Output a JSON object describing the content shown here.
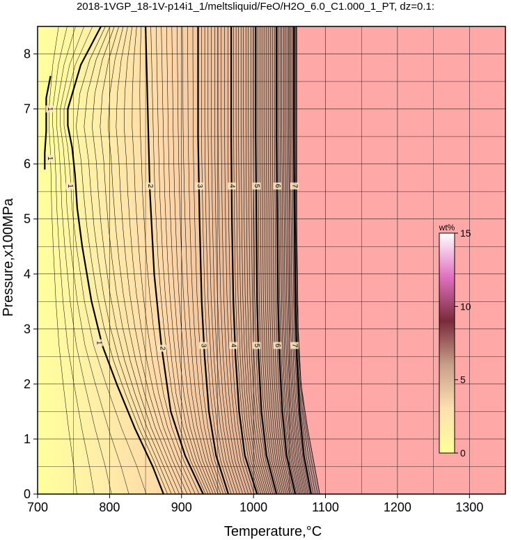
{
  "chart_data": {
    "type": "heatmap",
    "title": "2018-1VGP_18-1V-p14i1_1/meltsliquid/FeO/H2O_6.0_C1.000_1_PT, dz=0.1:",
    "xlabel": "Temperature,°C",
    "ylabel": "Pressure,x100MPa",
    "xlim": [
      700,
      1350
    ],
    "ylim": [
      0,
      8.5
    ],
    "x_ticks": [
      "700",
      "800",
      "900",
      "1000",
      "1100",
      "1200",
      "1300"
    ],
    "y_ticks": [
      "0",
      "1",
      "2",
      "3",
      "4",
      "5",
      "6",
      "7",
      "8"
    ],
    "grid": true,
    "colorbar": {
      "unit": "wt%",
      "range": [
        0,
        15
      ],
      "ticks": [
        "0",
        "5",
        "10",
        "15"
      ],
      "colors": [
        "#ffff99",
        "#ffe0b0",
        "#c8a08a",
        "#7a2a3a",
        "#e070c0",
        "#ffffff"
      ]
    },
    "liquid_free_region_color": "#ffa8a8",
    "solidus_contour": [
      {
        "t": 1060,
        "p": 8.5
      },
      {
        "t": 1060,
        "p": 5.0
      },
      {
        "t": 1062,
        "p": 3.0
      },
      {
        "t": 1066,
        "p": 2.0
      },
      {
        "t": 1075,
        "p": 1.2
      },
      {
        "t": 1085,
        "p": 0.5
      },
      {
        "t": 1092,
        "p": 0.0
      }
    ],
    "contours": [
      {
        "label": "1",
        "label_positions": [
          {
            "t": 745,
            "p": 5.6
          },
          {
            "t": 785,
            "p": 2.75
          }
        ],
        "points": [
          {
            "t": 788,
            "p": 8.5
          },
          {
            "t": 760,
            "p": 7.8
          },
          {
            "t": 742,
            "p": 7.0
          },
          {
            "t": 742,
            "p": 6.7
          },
          {
            "t": 748,
            "p": 6.3
          },
          {
            "t": 752,
            "p": 5.8
          },
          {
            "t": 755,
            "p": 5.2
          },
          {
            "t": 762,
            "p": 4.5
          },
          {
            "t": 775,
            "p": 3.5
          },
          {
            "t": 790,
            "p": 2.7
          },
          {
            "t": 810,
            "p": 2.0
          },
          {
            "t": 835,
            "p": 1.2
          },
          {
            "t": 860,
            "p": 0.5
          },
          {
            "t": 875,
            "p": 0.0
          }
        ]
      },
      {
        "label": "1",
        "label_positions": [
          {
            "t": 717,
            "p": 7.0
          },
          {
            "t": 717,
            "p": 6.1
          }
        ],
        "points": [
          {
            "t": 718,
            "p": 7.6
          },
          {
            "t": 712,
            "p": 7.2
          },
          {
            "t": 712,
            "p": 6.6
          },
          {
            "t": 710,
            "p": 6.2
          },
          {
            "t": 710,
            "p": 5.9
          }
        ]
      },
      {
        "label": "2",
        "label_positions": [
          {
            "t": 856,
            "p": 5.6
          },
          {
            "t": 873,
            "p": 2.65
          }
        ],
        "points": [
          {
            "t": 850,
            "p": 8.5
          },
          {
            "t": 853,
            "p": 7.0
          },
          {
            "t": 856,
            "p": 5.5
          },
          {
            "t": 862,
            "p": 4.0
          },
          {
            "t": 872,
            "p": 2.7
          },
          {
            "t": 885,
            "p": 1.5
          },
          {
            "t": 905,
            "p": 0.7
          },
          {
            "t": 930,
            "p": 0.0
          }
        ]
      },
      {
        "label": "3",
        "label_positions": [
          {
            "t": 925,
            "p": 5.6
          },
          {
            "t": 930,
            "p": 2.7
          }
        ],
        "points": [
          {
            "t": 923,
            "p": 8.5
          },
          {
            "t": 923,
            "p": 6.5
          },
          {
            "t": 925,
            "p": 5.0
          },
          {
            "t": 928,
            "p": 3.5
          },
          {
            "t": 932,
            "p": 2.5
          },
          {
            "t": 938,
            "p": 1.5
          },
          {
            "t": 948,
            "p": 0.7
          },
          {
            "t": 965,
            "p": 0.0
          }
        ]
      },
      {
        "label": "4",
        "label_positions": [
          {
            "t": 970,
            "p": 5.6
          },
          {
            "t": 972,
            "p": 2.7
          }
        ],
        "points": [
          {
            "t": 969,
            "p": 8.5
          },
          {
            "t": 969,
            "p": 6.5
          },
          {
            "t": 970,
            "p": 5.0
          },
          {
            "t": 972,
            "p": 3.5
          },
          {
            "t": 975,
            "p": 2.5
          },
          {
            "t": 980,
            "p": 1.5
          },
          {
            "t": 988,
            "p": 0.7
          },
          {
            "t": 1005,
            "p": 0.0
          }
        ]
      },
      {
        "label": "5",
        "label_positions": [
          {
            "t": 1004,
            "p": 5.6
          },
          {
            "t": 1004,
            "p": 2.7
          }
        ],
        "points": [
          {
            "t": 1003,
            "p": 8.5
          },
          {
            "t": 1003,
            "p": 6.5
          },
          {
            "t": 1004,
            "p": 5.0
          },
          {
            "t": 1005,
            "p": 3.5
          },
          {
            "t": 1007,
            "p": 2.5
          },
          {
            "t": 1011,
            "p": 1.5
          },
          {
            "t": 1018,
            "p": 0.7
          },
          {
            "t": 1032,
            "p": 0.0
          }
        ]
      },
      {
        "label": "6",
        "label_positions": [
          {
            "t": 1033,
            "p": 5.6
          },
          {
            "t": 1033,
            "p": 2.7
          }
        ],
        "points": [
          {
            "t": 1032,
            "p": 8.5
          },
          {
            "t": 1032,
            "p": 6.5
          },
          {
            "t": 1033,
            "p": 5.0
          },
          {
            "t": 1034,
            "p": 3.5
          },
          {
            "t": 1036,
            "p": 2.5
          },
          {
            "t": 1040,
            "p": 1.5
          },
          {
            "t": 1046,
            "p": 0.7
          },
          {
            "t": 1058,
            "p": 0.0
          }
        ]
      },
      {
        "label": "7",
        "label_positions": [
          {
            "t": 1057,
            "p": 5.6
          },
          {
            "t": 1057,
            "p": 2.7
          }
        ],
        "points": [
          {
            "t": 1056,
            "p": 8.5
          },
          {
            "t": 1056,
            "p": 6.5
          },
          {
            "t": 1057,
            "p": 5.0
          },
          {
            "t": 1058,
            "p": 3.5
          },
          {
            "t": 1060,
            "p": 2.5
          },
          {
            "t": 1064,
            "p": 1.5
          },
          {
            "t": 1070,
            "p": 0.7
          },
          {
            "t": 1080,
            "p": 0.0
          }
        ]
      }
    ]
  }
}
